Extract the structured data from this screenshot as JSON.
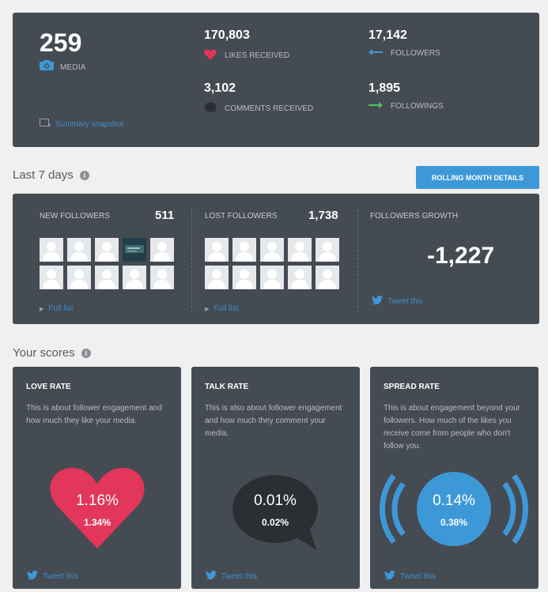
{
  "summary": {
    "media_count": "259",
    "media_label": "MEDIA",
    "likes_value": "170,803",
    "likes_label": "LIKES RECEIVED",
    "comments_value": "3,102",
    "comments_label": "COMMENTS RECEIVED",
    "followers_value": "17,142",
    "followers_label": "FOLLOWERS",
    "followings_value": "1,895",
    "followings_label": "FOLLOWINGS",
    "snapshot_link": "Summary snapshot"
  },
  "last7": {
    "title": "Last 7 days",
    "rolling_button": "ROLLING MONTH DETAILS",
    "new_followers_label": "NEW FOLLOWERS",
    "new_followers_count": "511",
    "lost_followers_label": "LOST FOLLOWERS",
    "lost_followers_count": "1,738",
    "growth_label": "FOLLOWERS GROWTH",
    "growth_value": "-1,227",
    "full_list_link": "Full list",
    "tweet_link": "Tweet this"
  },
  "scores": {
    "title": "Your scores",
    "cards": [
      {
        "title": "LOVE RATE",
        "desc": "This is about follower engagement and how much they like your media.",
        "main": "1.16%",
        "sub": "1.34%",
        "tweet": "Tweet this"
      },
      {
        "title": "TALK RATE",
        "desc": "This is also about follower engagement and how much they comment your media.",
        "main": "0.01%",
        "sub": "0.02%",
        "tweet": "Tweet this"
      },
      {
        "title": "SPREAD RATE",
        "desc": "This is about engagement beyond your followers. How much of the likes you receive come from people who don't follow you.",
        "main": "0.14%",
        "sub": "0.38%",
        "tweet": "Tweet this"
      }
    ]
  },
  "colors": {
    "panel": "#454b52",
    "accent_blue": "#3d98d8",
    "heart": "#e2365a",
    "green": "#4cc75a"
  }
}
